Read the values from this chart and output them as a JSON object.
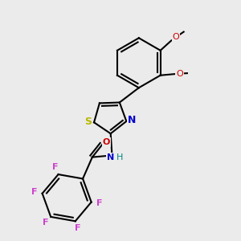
{
  "background_color": "#ebebeb",
  "bond_color": "#000000",
  "atom_colors": {
    "S": "#b8b800",
    "N": "#0000cc",
    "O": "#cc0000",
    "F": "#cc44cc",
    "H": "#008888",
    "C": "#000000"
  },
  "figsize": [
    3.0,
    3.0
  ],
  "dpi": 100
}
